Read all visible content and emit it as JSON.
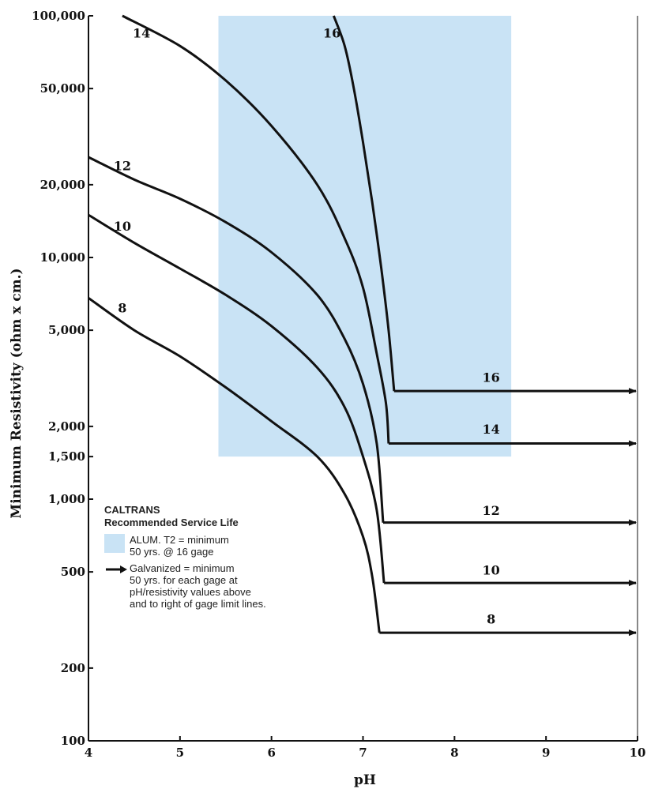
{
  "chart_data": {
    "type": "line",
    "xlabel": "pH",
    "ylabel": "Minimum Resistivity (ohm x cm.)",
    "yscale": "log",
    "xlim": [
      4,
      10
    ],
    "ylim": [
      100,
      100000
    ],
    "x_ticks": [
      4,
      5,
      6,
      7,
      8,
      9,
      10
    ],
    "y_ticks": [
      {
        "value": 100,
        "label": "100"
      },
      {
        "value": 200,
        "label": "200"
      },
      {
        "value": 500,
        "label": "500"
      },
      {
        "value": 1000,
        "label": "1,000"
      },
      {
        "value": 1500,
        "label": "1,500"
      },
      {
        "value": 2000,
        "label": "2,000"
      },
      {
        "value": 5000,
        "label": "5,000"
      },
      {
        "value": 10000,
        "label": "10,000"
      },
      {
        "value": 20000,
        "label": "20,000"
      },
      {
        "value": 50000,
        "label": "50,000"
      },
      {
        "value": 100000,
        "label": "100,000"
      }
    ],
    "shaded_region": {
      "x": [
        5.42,
        8.62
      ],
      "y": [
        1500,
        100000
      ],
      "color": "#c9e3f5"
    },
    "series": [
      {
        "name": "8",
        "points": [
          [
            4,
            6800
          ],
          [
            4.5,
            5000
          ],
          [
            5,
            3900
          ],
          [
            5.5,
            2900
          ],
          [
            6,
            2100
          ],
          [
            6.5,
            1500
          ],
          [
            6.8,
            1050
          ],
          [
            7,
            700
          ],
          [
            7.1,
            480
          ],
          [
            7.18,
            280
          ],
          [
            10,
            280
          ]
        ]
      },
      {
        "name": "10",
        "points": [
          [
            4,
            15000
          ],
          [
            4.5,
            11500
          ],
          [
            5,
            9000
          ],
          [
            5.5,
            7000
          ],
          [
            6,
            5200
          ],
          [
            6.5,
            3500
          ],
          [
            6.8,
            2400
          ],
          [
            7,
            1500
          ],
          [
            7.15,
            900
          ],
          [
            7.23,
            450
          ],
          [
            10,
            450
          ]
        ]
      },
      {
        "name": "12",
        "points": [
          [
            4,
            26000
          ],
          [
            4.5,
            21000
          ],
          [
            5,
            17500
          ],
          [
            5.5,
            14000
          ],
          [
            6,
            10500
          ],
          [
            6.5,
            7000
          ],
          [
            6.8,
            4600
          ],
          [
            7,
            3000
          ],
          [
            7.15,
            1700
          ],
          [
            7.22,
            800
          ],
          [
            10,
            800
          ]
        ]
      },
      {
        "name": "14",
        "points": [
          [
            4.37,
            100000
          ],
          [
            5,
            75000
          ],
          [
            5.5,
            54000
          ],
          [
            6,
            35000
          ],
          [
            6.5,
            20000
          ],
          [
            6.8,
            12000
          ],
          [
            7,
            7500
          ],
          [
            7.15,
            4000
          ],
          [
            7.25,
            2500
          ],
          [
            7.28,
            1700
          ],
          [
            10,
            1700
          ]
        ]
      },
      {
        "name": "16",
        "points": [
          [
            6.68,
            100000
          ],
          [
            6.8,
            75000
          ],
          [
            6.9,
            50000
          ],
          [
            7,
            30000
          ],
          [
            7.1,
            17000
          ],
          [
            7.2,
            9000
          ],
          [
            7.28,
            5000
          ],
          [
            7.34,
            2800
          ],
          [
            10,
            2800
          ]
        ]
      }
    ],
    "curve_labels": [
      {
        "series": "16",
        "x": 6.66,
        "y": 85000,
        "text": "16"
      },
      {
        "series": "14",
        "x": 4.58,
        "y": 85000,
        "text": "14"
      },
      {
        "series": "12",
        "x": 4.37,
        "y": 24000,
        "text": "12"
      },
      {
        "series": "10",
        "x": 4.37,
        "y": 13500,
        "text": "10"
      },
      {
        "series": "8",
        "x": 4.37,
        "y": 6200,
        "text": "8"
      },
      {
        "series": "16",
        "x": 8.4,
        "y": 3200,
        "text": "16"
      },
      {
        "series": "14",
        "x": 8.4,
        "y": 1950,
        "text": "14"
      },
      {
        "series": "12",
        "x": 8.4,
        "y": 900,
        "text": "12"
      },
      {
        "series": "10",
        "x": 8.4,
        "y": 510,
        "text": "10"
      },
      {
        "series": "8",
        "x": 8.4,
        "y": 320,
        "text": "8"
      }
    ]
  },
  "legend": {
    "title_line1": "CALTRANS",
    "title_line2": "Recommended Service Life",
    "alum_text": "ALUM. T2 = minimum\n50 yrs. @ 16 gage",
    "galv_text": "Galvanized = minimum\n50 yrs. for each gage at\npH/resistivity values above\nand to right of gage limit lines."
  },
  "colors": {
    "shade": "#c9e3f5",
    "line": "#111111"
  }
}
